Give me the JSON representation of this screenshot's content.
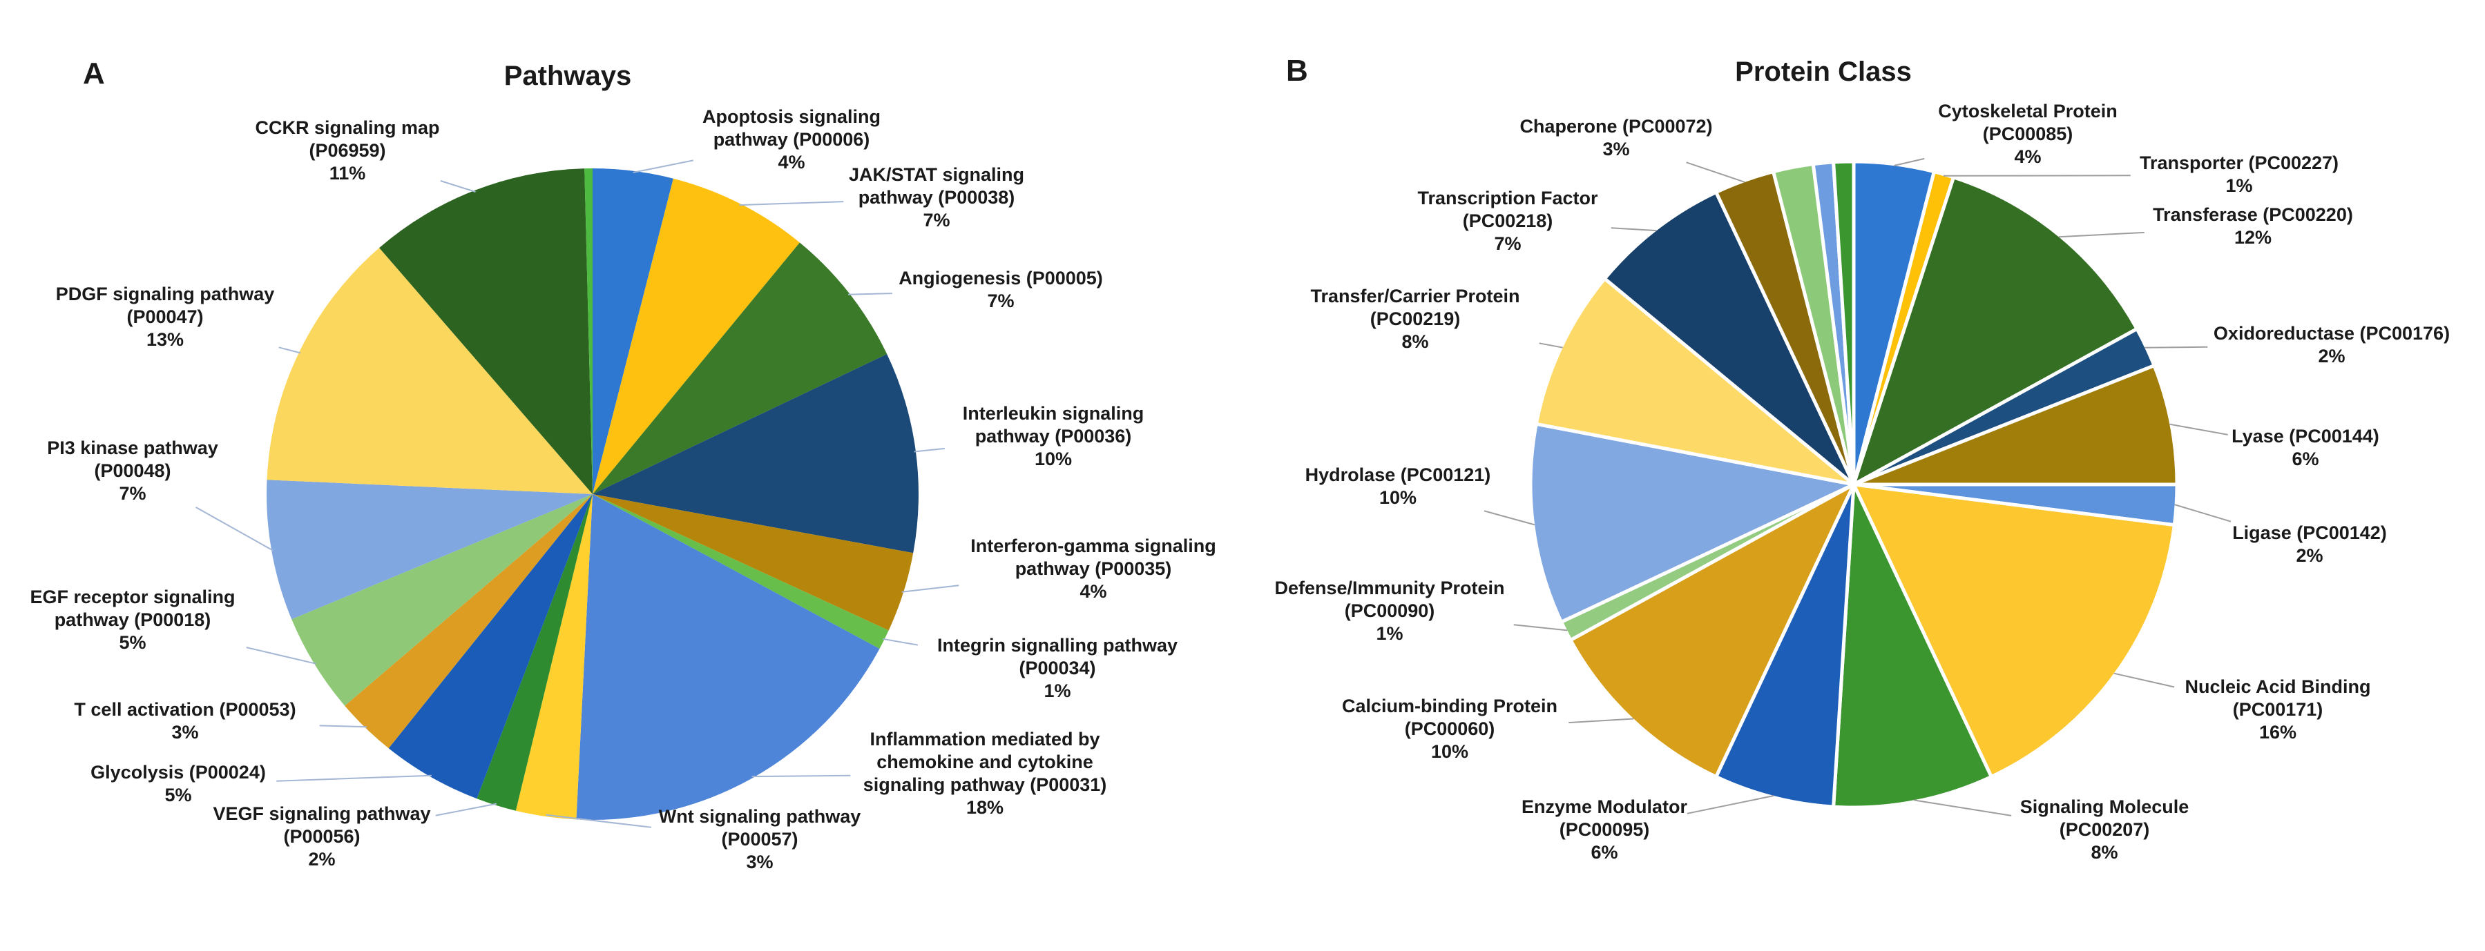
{
  "figure": {
    "background_color": "#ffffff",
    "text_color": "#1a1a1a"
  },
  "chart_data": [
    {
      "type": "pie",
      "panel": "A",
      "title": "Pathways",
      "legend_position": "none",
      "labels_around_pie": true,
      "slice_borders": "none",
      "leader_color": "#a3b6d4",
      "slices": [
        {
          "label": "Apoptosis signaling pathway (P00006)",
          "lines": [
            "Apoptosis signaling",
            "pathway (P00006)"
          ],
          "pct_label": "4%",
          "value": 4,
          "color": "#2E78D2",
          "label_xy": [
            1146,
            178
          ]
        },
        {
          "label": "JAK/STAT signaling pathway (P00038)",
          "lines": [
            "JAK/STAT signaling",
            "pathway (P00038)"
          ],
          "pct_label": "7%",
          "value": 7,
          "color": "#FFC110",
          "label_xy": [
            1356,
            262
          ]
        },
        {
          "label": "Angiogenesis (P00005)",
          "lines": [
            "Angiogenesis (P00005)"
          ],
          "pct_label": "7%",
          "value": 7,
          "color": "#3B7A28",
          "label_xy": [
            1449,
            412
          ]
        },
        {
          "label": "Interleukin signaling pathway (P00036)",
          "lines": [
            "Interleukin signaling",
            "pathway (P00036)"
          ],
          "pct_label": "10%",
          "value": 10,
          "color": "#1B4A78",
          "label_xy": [
            1525,
            608
          ]
        },
        {
          "label": "Interferon-gamma signaling pathway (P00035)",
          "lines": [
            "Interferon-gamma signaling",
            "pathway (P00035)"
          ],
          "pct_label": "4%",
          "value": 4,
          "color": "#B5860B",
          "label_xy": [
            1583,
            800
          ]
        },
        {
          "label": "Integrin signalling pathway (P00034)",
          "lines": [
            "Integrin signalling pathway",
            "(P00034)"
          ],
          "pct_label": "1%",
          "value": 1,
          "color": "#68BE4A",
          "label_xy": [
            1531,
            944
          ]
        },
        {
          "label": "Inflammation mediated by chemokine and cytokine signaling pathway (P00031)",
          "lines": [
            "Inflammation mediated by",
            "chemokine and cytokine",
            "signaling pathway (P00031)"
          ],
          "pct_label": "18%",
          "value": 18,
          "color": "#4F85D8",
          "label_xy": [
            1426,
            1080
          ]
        },
        {
          "label": "Wnt signaling pathway (P00057)",
          "lines": [
            "Wnt signaling pathway",
            "(P00057)"
          ],
          "pct_label": "3%",
          "value": 3,
          "color": "#FFD02E",
          "label_xy": [
            1100,
            1192
          ]
        },
        {
          "label": "VEGF signaling pathway (P00056)",
          "lines": [
            "VEGF signaling pathway",
            "(P00056)"
          ],
          "pct_label": "2%",
          "value": 2,
          "color": "#2F8B2F",
          "label_xy": [
            466,
            1188
          ]
        },
        {
          "label": "Glycolysis (P00024)",
          "lines": [
            "Glycolysis (P00024)"
          ],
          "pct_label": "5%",
          "value": 5,
          "color": "#1A5CB8",
          "label_xy": [
            258,
            1128
          ]
        },
        {
          "label": "T cell activation (P00053)",
          "lines": [
            "T cell activation (P00053)"
          ],
          "pct_label": "3%",
          "value": 3,
          "color": "#DC9D22",
          "label_xy": [
            268,
            1037
          ]
        },
        {
          "label": "EGF receptor signaling pathway (P00018)",
          "lines": [
            "EGF receptor signaling",
            "pathway (P00018)"
          ],
          "pct_label": "5%",
          "value": 5,
          "color": "#8FC877",
          "label_xy": [
            192,
            874
          ]
        },
        {
          "label": "PI3 kinase pathway (P00048)",
          "lines": [
            "PI3 kinase pathway",
            "(P00048)"
          ],
          "pct_label": "7%",
          "value": 7,
          "color": "#81A7E0",
          "label_xy": [
            192,
            658
          ]
        },
        {
          "label": "PDGF signaling pathway (P00047)",
          "lines": [
            "PDGF signaling pathway",
            "(P00047)"
          ],
          "pct_label": "13%",
          "value": 13,
          "color": "#FCD75D",
          "label_xy": [
            239,
            435
          ]
        },
        {
          "label": "CCKR signaling map (P06959)",
          "lines": [
            "CCKR signaling map",
            "(P06959)"
          ],
          "pct_label": "11%",
          "value": 11,
          "color": "#2D6320",
          "label_xy": [
            503,
            194
          ]
        },
        {
          "label": "",
          "lines": [],
          "pct_label": "",
          "value": 0.4,
          "color": "#4DBB3F",
          "label_xy": null,
          "unlabeled_sliver": true
        }
      ]
    },
    {
      "type": "pie",
      "panel": "B",
      "title": "Protein Class",
      "legend_position": "none",
      "labels_around_pie": true,
      "slice_borders": "white",
      "leader_color": "#9e9e9e",
      "slices": [
        {
          "label": "Cytoskeletal Protein (PC00085)",
          "lines": [
            "Cytoskeletal Protein",
            "(PC00085)"
          ],
          "pct_label": "4%",
          "value": 4,
          "color": "#2E78D2",
          "label_xy": [
            1137,
            170
          ]
        },
        {
          "label": "Transporter (PC00227)",
          "lines": [
            "Transporter (PC00227)"
          ],
          "pct_label": "1%",
          "value": 1,
          "color": "#FFC107",
          "label_xy": [
            1443,
            245
          ]
        },
        {
          "label": "Transferase (PC00220)",
          "lines": [
            "Transferase (PC00220)"
          ],
          "pct_label": "12%",
          "value": 12,
          "color": "#356F24",
          "label_xy": [
            1463,
            320
          ]
        },
        {
          "label": "Oxidoreductase (PC00176)",
          "lines": [
            "Oxidoreductase (PC00176)"
          ],
          "pct_label": "2%",
          "value": 2,
          "color": "#1D4F80",
          "label_xy": [
            1577,
            492
          ]
        },
        {
          "label": "Lyase (PC00144)",
          "lines": [
            "Lyase (PC00144)"
          ],
          "pct_label": "6%",
          "value": 6,
          "color": "#A17D0A",
          "label_xy": [
            1539,
            641
          ]
        },
        {
          "label": "Ligase (PC00142)",
          "lines": [
            "Ligase (PC00142)"
          ],
          "pct_label": "2%",
          "value": 2,
          "color": "#5D93DC",
          "label_xy": [
            1545,
            781
          ]
        },
        {
          "label": "Nucleic Acid Binding (PC00171)",
          "lines": [
            "Nucleic Acid Binding",
            "(PC00171)"
          ],
          "pct_label": "16%",
          "value": 16,
          "color": "#FCC72F",
          "label_xy": [
            1499,
            1004
          ]
        },
        {
          "label": "Signaling Molecule (PC00207)",
          "lines": [
            "Signaling Molecule",
            "(PC00207)"
          ],
          "pct_label": "8%",
          "value": 8,
          "color": "#3C9630",
          "label_xy": [
            1248,
            1178
          ]
        },
        {
          "label": "Enzyme Modulator (PC00095)",
          "lines": [
            "Enzyme Modulator",
            "(PC00095)"
          ],
          "pct_label": "6%",
          "value": 6,
          "color": "#1D5FB8",
          "label_xy": [
            524,
            1178
          ]
        },
        {
          "label": "Calcium-binding Protein (PC00060)",
          "lines": [
            "Calcium-binding Protein",
            "(PC00060)"
          ],
          "pct_label": "10%",
          "value": 10,
          "color": "#D89F1B",
          "label_xy": [
            300,
            1032
          ]
        },
        {
          "label": "Defense/Immunity Protein (PC00090)",
          "lines": [
            "Defense/Immunity Protein",
            "(PC00090)"
          ],
          "pct_label": "1%",
          "value": 1,
          "color": "#93CC80",
          "label_xy": [
            213,
            861
          ]
        },
        {
          "label": "Hydrolase (PC00121)",
          "lines": [
            "Hydrolase (PC00121)"
          ],
          "pct_label": "10%",
          "value": 10,
          "color": "#82A8E2",
          "label_xy": [
            225,
            697
          ]
        },
        {
          "label": "Transfer/Carrier Protein (PC00219)",
          "lines": [
            "Transfer/Carrier Protein",
            "(PC00219)"
          ],
          "pct_label": "8%",
          "value": 8,
          "color": "#FDD967",
          "label_xy": [
            250,
            438
          ]
        },
        {
          "label": "Transcription Factor (PC00218)",
          "lines": [
            "Transcription Factor",
            "(PC00218)"
          ],
          "pct_label": "7%",
          "value": 7,
          "color": "#17406A",
          "label_xy": [
            384,
            296
          ]
        },
        {
          "label": "Chaperone (PC00072)",
          "lines": [
            "Chaperone (PC00072)"
          ],
          "pct_label": "3%",
          "value": 3,
          "color": "#8A6A0B",
          "label_xy": [
            541,
            192
          ]
        },
        {
          "label": "",
          "lines": [],
          "pct_label": "",
          "value": 2,
          "color": "#8CC979",
          "label_xy": null,
          "unlabeled_sliver": true
        },
        {
          "label": "",
          "lines": [],
          "pct_label": "",
          "value": 1,
          "color": "#6D9CE0",
          "label_xy": null,
          "unlabeled_sliver": true
        },
        {
          "label": "",
          "lines": [],
          "pct_label": "",
          "value": 1,
          "color": "#3C9630",
          "label_xy": null,
          "unlabeled_sliver": true
        }
      ]
    }
  ]
}
